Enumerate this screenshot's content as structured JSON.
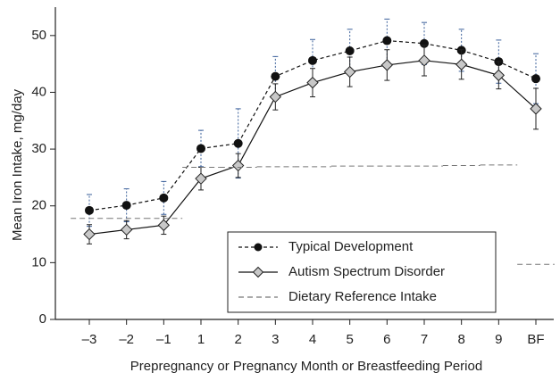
{
  "chart_data": {
    "type": "line",
    "y_label": "Mean Iron Intake, mg/day",
    "x_label": "Prepregnancy or Pregnancy Month or Breastfeeding Period",
    "categories": [
      "–3",
      "–2",
      "–1",
      "1",
      "2",
      "3",
      "4",
      "5",
      "6",
      "7",
      "8",
      "9",
      "BF"
    ],
    "series": [
      {
        "name": "Typical Development",
        "color": "#111111",
        "marker": "circle",
        "line": "dashed",
        "values": [
          19.2,
          20.1,
          21.4,
          30.1,
          31,
          42.8,
          45.6,
          47.3,
          49.1,
          48.6,
          47.4,
          45.4,
          42.4
        ],
        "errors": [
          2.8,
          2.9,
          2.9,
          3.2,
          6.1,
          3.5,
          3.7,
          3.8,
          3.8,
          3.7,
          3.7,
          3.8,
          4.4
        ]
      },
      {
        "name": "Autism Spectrum Disorder",
        "color": "#111111",
        "marker": "diamond",
        "line": "solid",
        "values": [
          15,
          15.8,
          16.6,
          24.8,
          27.1,
          39.2,
          41.7,
          43.6,
          44.8,
          45.6,
          44.9,
          43,
          37.1
        ],
        "errors": [
          1.7,
          1.6,
          1.6,
          2,
          2.1,
          2.3,
          2.5,
          2.6,
          2.7,
          2.7,
          2.6,
          2.4,
          3.6
        ]
      },
      {
        "name": "Dietary Reference Intake",
        "color": "#777777",
        "marker": "none",
        "line": "reference",
        "values": [
          17.8,
          17.8,
          17.8,
          26.8,
          26.8,
          26.9,
          26.9,
          27,
          27,
          27,
          27.1,
          27.2,
          9.7
        ]
      }
    ],
    "ylim": [
      0,
      55
    ],
    "yticks": [
      0,
      10,
      20,
      30,
      40,
      50
    ],
    "legend": "lower right"
  }
}
